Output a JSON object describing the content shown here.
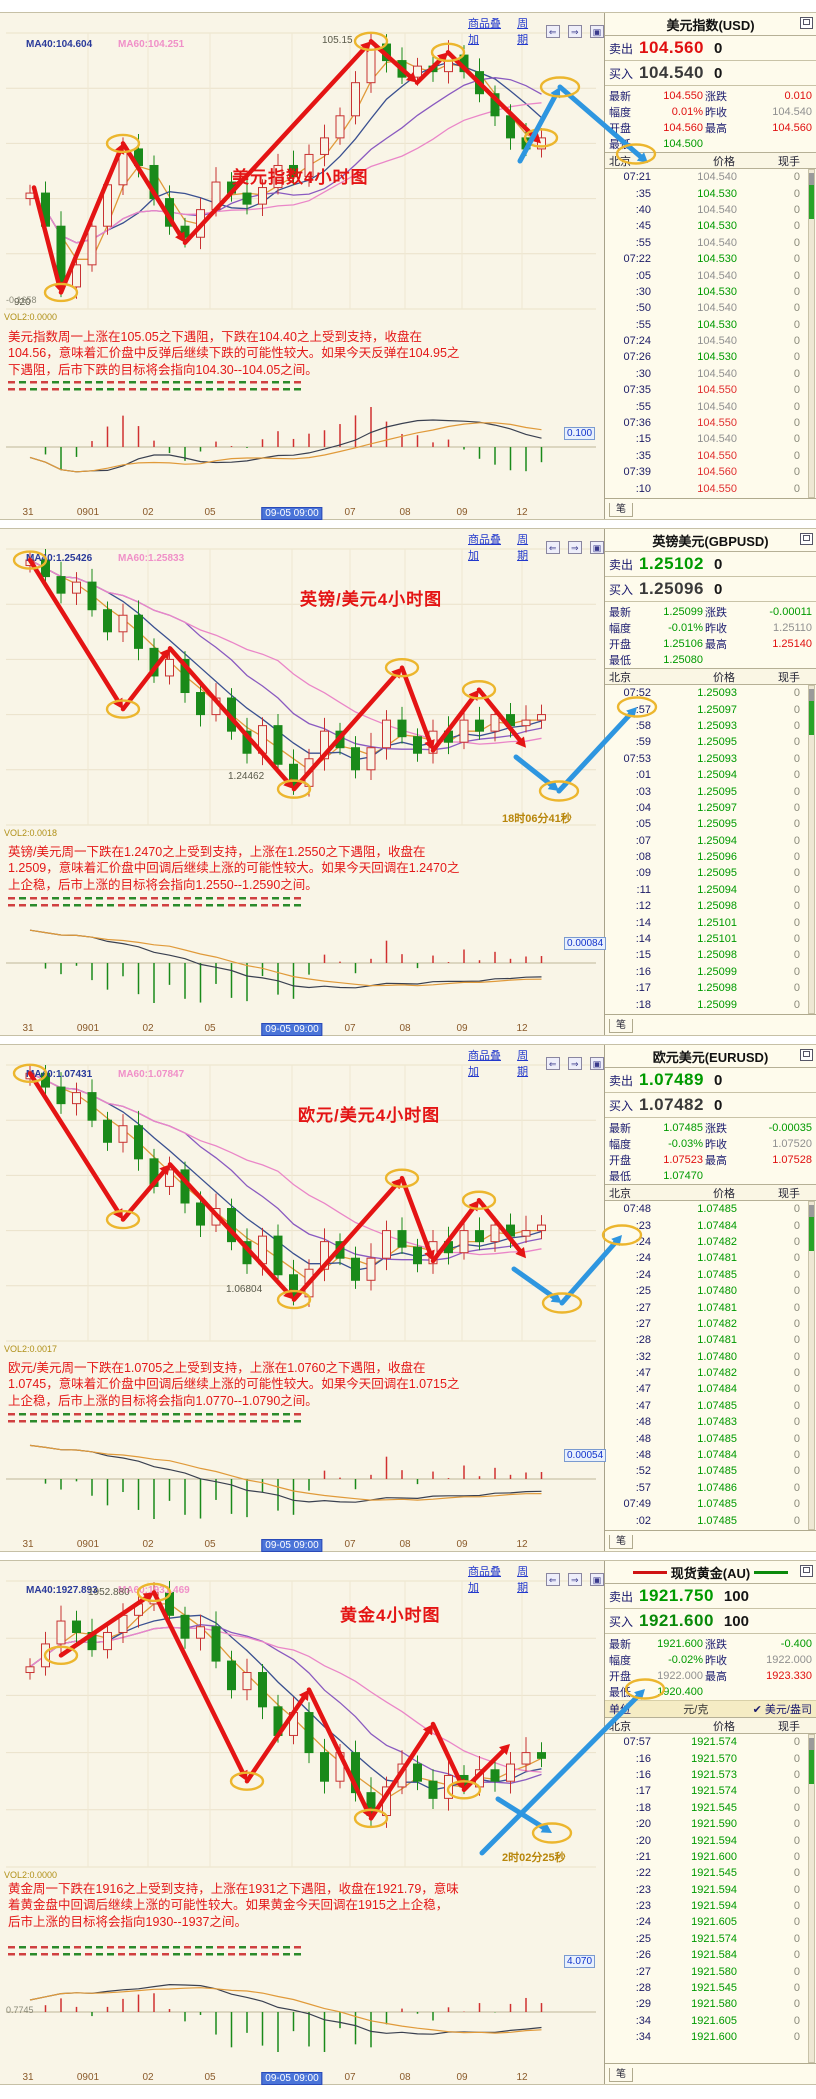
{
  "panels": [
    {
      "toolbar": {
        "overlay": "商品叠加",
        "period": "周期"
      },
      "chart": {
        "ma40": "MA40:104.604",
        "ma60": "MA60:104.251",
        "watermark": "美元指数4小时图",
        "peak_label": "105.15",
        "low_label": "920",
        "annotation": "",
        "vol_label": "VOL2:0.0000",
        "ind_label": "-0.1658",
        "macd_box": "0.100",
        "x_ticks": [
          "31",
          "0901",
          "02",
          "05",
          "09-05 09:00",
          "07",
          "08",
          "09",
          "12"
        ],
        "x_highlight_index": 4,
        "commentary": "美元指数周一上涨在105.05之下遇阻，下跌在104.40之上受到支持，收盘在104.56，意味着汇价盘中反弹后继续下跌的可能性较大。如果今天反弹在104.95之下遇阻，后市下跌的目标将会指向104.30--104.05之间。"
      },
      "quote": {
        "title": "美元指数(USD)",
        "sell_label": "卖出",
        "sell_price": "104.560",
        "sell_qty": "0",
        "sell_color": "red",
        "buy_label": "买入",
        "buy_price": "104.540",
        "buy_qty": "0",
        "buy_color": "dark",
        "stats": [
          {
            "label": "最新",
            "value": "104.550",
            "color": "red",
            "label2": "涨跌",
            "value2": "0.010",
            "color2": "red"
          },
          {
            "label": "幅度",
            "value": "0.01%",
            "color": "red",
            "label2": "昨收",
            "value2": "104.540",
            "color2": "gray"
          },
          {
            "label": "开盘",
            "value": "104.560",
            "color": "red",
            "label2": "最高",
            "value2": "104.560",
            "color2": "red"
          },
          {
            "label": "最低",
            "value": "104.500",
            "color": "green",
            "label2": "",
            "value2": "",
            "color2": "gray"
          }
        ],
        "unit_row": null,
        "columns": [
          "北京",
          "价格",
          "现手"
        ],
        "ticks": [
          {
            "t": "07:21",
            "p": "104.540",
            "v": "0",
            "c": "n"
          },
          {
            "t": ":35",
            "p": "104.530",
            "v": "0",
            "c": "g"
          },
          {
            "t": ":40",
            "p": "104.540",
            "v": "0",
            "c": "n"
          },
          {
            "t": ":45",
            "p": "104.530",
            "v": "0",
            "c": "g"
          },
          {
            "t": ":55",
            "p": "104.540",
            "v": "0",
            "c": "n"
          },
          {
            "t": "07:22",
            "p": "104.530",
            "v": "0",
            "c": "g"
          },
          {
            "t": ":05",
            "p": "104.540",
            "v": "0",
            "c": "n"
          },
          {
            "t": ":30",
            "p": "104.530",
            "v": "0",
            "c": "g"
          },
          {
            "t": ":50",
            "p": "104.540",
            "v": "0",
            "c": "n"
          },
          {
            "t": ":55",
            "p": "104.530",
            "v": "0",
            "c": "g"
          },
          {
            "t": "07:24",
            "p": "104.540",
            "v": "0",
            "c": "n"
          },
          {
            "t": "07:26",
            "p": "104.530",
            "v": "0",
            "c": "g"
          },
          {
            "t": ":30",
            "p": "104.540",
            "v": "0",
            "c": "n"
          },
          {
            "t": "07:35",
            "p": "104.550",
            "v": "0",
            "c": "r"
          },
          {
            "t": ":55",
            "p": "104.540",
            "v": "0",
            "c": "n"
          },
          {
            "t": "07:36",
            "p": "104.550",
            "v": "0",
            "c": "r"
          },
          {
            "t": ":15",
            "p": "104.540",
            "v": "0",
            "c": "n"
          },
          {
            "t": ":35",
            "p": "104.550",
            "v": "0",
            "c": "r"
          },
          {
            "t": "07:39",
            "p": "104.560",
            "v": "0",
            "c": "r"
          },
          {
            "t": ":10",
            "p": "104.550",
            "v": "0",
            "c": "r"
          }
        ],
        "tab": "笔"
      }
    },
    {
      "toolbar": {
        "overlay": "商品叠加",
        "period": "周期"
      },
      "chart": {
        "ma40": "MA40:1.25426",
        "ma60": "MA60:1.25833",
        "watermark": "英镑/美元4小时图",
        "peak_label": "",
        "low_label": "1.24462",
        "annotation": "18时06分41秒",
        "vol_label": "VOL2:0.0018",
        "ind_label": "",
        "macd_box": "0.00084",
        "x_ticks": [
          "31",
          "0901",
          "02",
          "05",
          "09-05 09:00",
          "07",
          "08",
          "09",
          "12"
        ],
        "x_highlight_index": 4,
        "commentary": "英镑/美元周一下跌在1.2470之上受到支持，上涨在1.2550之下遇阻，收盘在1.2509，意味着汇价盘中回调后继续上涨的可能性较大。如果今天回调在1.2470之上企稳，后市上涨的目标将会指向1.2550--1.2590之间。"
      },
      "quote": {
        "title": "英镑美元(GBPUSD)",
        "sell_label": "卖出",
        "sell_price": "1.25102",
        "sell_qty": "0",
        "sell_color": "green",
        "buy_label": "买入",
        "buy_price": "1.25096",
        "buy_qty": "0",
        "buy_color": "dark",
        "stats": [
          {
            "label": "最新",
            "value": "1.25099",
            "color": "green",
            "label2": "涨跌",
            "value2": "-0.00011",
            "color2": "green"
          },
          {
            "label": "幅度",
            "value": "-0.01%",
            "color": "green",
            "label2": "昨收",
            "value2": "1.25110",
            "color2": "gray"
          },
          {
            "label": "开盘",
            "value": "1.25106",
            "color": "green",
            "label2": "最高",
            "value2": "1.25140",
            "color2": "red"
          },
          {
            "label": "最低",
            "value": "1.25080",
            "color": "green",
            "label2": "",
            "value2": "",
            "color2": "gray"
          }
        ],
        "unit_row": null,
        "columns": [
          "北京",
          "价格",
          "现手"
        ],
        "ticks": [
          {
            "t": "07:52",
            "p": "1.25093",
            "v": "0",
            "c": "g"
          },
          {
            "t": ":57",
            "p": "1.25097",
            "v": "0",
            "c": "g"
          },
          {
            "t": ":58",
            "p": "1.25093",
            "v": "0",
            "c": "g"
          },
          {
            "t": ":59",
            "p": "1.25095",
            "v": "0",
            "c": "g"
          },
          {
            "t": "07:53",
            "p": "1.25093",
            "v": "0",
            "c": "g"
          },
          {
            "t": ":01",
            "p": "1.25094",
            "v": "0",
            "c": "g"
          },
          {
            "t": ":03",
            "p": "1.25095",
            "v": "0",
            "c": "g"
          },
          {
            "t": ":04",
            "p": "1.25097",
            "v": "0",
            "c": "g"
          },
          {
            "t": ":05",
            "p": "1.25095",
            "v": "0",
            "c": "g"
          },
          {
            "t": ":07",
            "p": "1.25094",
            "v": "0",
            "c": "g"
          },
          {
            "t": ":08",
            "p": "1.25096",
            "v": "0",
            "c": "g"
          },
          {
            "t": ":09",
            "p": "1.25095",
            "v": "0",
            "c": "g"
          },
          {
            "t": ":11",
            "p": "1.25094",
            "v": "0",
            "c": "g"
          },
          {
            "t": ":12",
            "p": "1.25098",
            "v": "0",
            "c": "g"
          },
          {
            "t": ":14",
            "p": "1.25101",
            "v": "0",
            "c": "g"
          },
          {
            "t": ":14",
            "p": "1.25101",
            "v": "0",
            "c": "g"
          },
          {
            "t": ":15",
            "p": "1.25098",
            "v": "0",
            "c": "g"
          },
          {
            "t": ":16",
            "p": "1.25099",
            "v": "0",
            "c": "g"
          },
          {
            "t": ":17",
            "p": "1.25098",
            "v": "0",
            "c": "g"
          },
          {
            "t": ":18",
            "p": "1.25099",
            "v": "0",
            "c": "g"
          }
        ],
        "tab": "笔"
      }
    },
    {
      "toolbar": {
        "overlay": "商品叠加",
        "period": "周期"
      },
      "chart": {
        "ma40": "MA40:1.07431",
        "ma60": "MA60:1.07847",
        "watermark": "欧元/美元4小时图",
        "peak_label": "",
        "low_label": "1.06804",
        "annotation": "",
        "vol_label": "VOL2:0.0017",
        "ind_label": "",
        "macd_box": "0.00054",
        "x_ticks": [
          "31",
          "0901",
          "02",
          "05",
          "09-05 09:00",
          "07",
          "08",
          "09",
          "12"
        ],
        "x_highlight_index": 4,
        "commentary": "欧元/美元周一下跌在1.0705之上受到支持，上涨在1.0760之下遇阻，收盘在1.0745，意味着汇价盘中回调后继续上涨的可能性较大。如果今天回调在1.0715之上企稳，后市上涨的目标将会指向1.0770--1.0790之间。"
      },
      "quote": {
        "title": "欧元美元(EURUSD)",
        "sell_label": "卖出",
        "sell_price": "1.07489",
        "sell_qty": "0",
        "sell_color": "green",
        "buy_label": "买入",
        "buy_price": "1.07482",
        "buy_qty": "0",
        "buy_color": "dark",
        "stats": [
          {
            "label": "最新",
            "value": "1.07485",
            "color": "green",
            "label2": "涨跌",
            "value2": "-0.00035",
            "color2": "green"
          },
          {
            "label": "幅度",
            "value": "-0.03%",
            "color": "green",
            "label2": "昨收",
            "value2": "1.07520",
            "color2": "gray"
          },
          {
            "label": "开盘",
            "value": "1.07523",
            "color": "red",
            "label2": "最高",
            "value2": "1.07528",
            "color2": "red"
          },
          {
            "label": "最低",
            "value": "1.07470",
            "color": "green",
            "label2": "",
            "value2": "",
            "color2": "gray"
          }
        ],
        "unit_row": null,
        "columns": [
          "北京",
          "价格",
          "现手"
        ],
        "ticks": [
          {
            "t": "07:48",
            "p": "1.07485",
            "v": "0",
            "c": "g"
          },
          {
            "t": ":23",
            "p": "1.07484",
            "v": "0",
            "c": "g"
          },
          {
            "t": ":24",
            "p": "1.07482",
            "v": "0",
            "c": "g"
          },
          {
            "t": ":24",
            "p": "1.07481",
            "v": "0",
            "c": "g"
          },
          {
            "t": ":24",
            "p": "1.07485",
            "v": "0",
            "c": "g"
          },
          {
            "t": ":25",
            "p": "1.07480",
            "v": "0",
            "c": "g"
          },
          {
            "t": ":27",
            "p": "1.07481",
            "v": "0",
            "c": "g"
          },
          {
            "t": ":27",
            "p": "1.07482",
            "v": "0",
            "c": "g"
          },
          {
            "t": ":28",
            "p": "1.07481",
            "v": "0",
            "c": "g"
          },
          {
            "t": ":32",
            "p": "1.07480",
            "v": "0",
            "c": "g"
          },
          {
            "t": ":47",
            "p": "1.07482",
            "v": "0",
            "c": "g"
          },
          {
            "t": ":47",
            "p": "1.07484",
            "v": "0",
            "c": "g"
          },
          {
            "t": ":47",
            "p": "1.07485",
            "v": "0",
            "c": "g"
          },
          {
            "t": ":48",
            "p": "1.07483",
            "v": "0",
            "c": "g"
          },
          {
            "t": ":48",
            "p": "1.07485",
            "v": "0",
            "c": "g"
          },
          {
            "t": ":48",
            "p": "1.07484",
            "v": "0",
            "c": "g"
          },
          {
            "t": ":52",
            "p": "1.07485",
            "v": "0",
            "c": "g"
          },
          {
            "t": ":57",
            "p": "1.07486",
            "v": "0",
            "c": "g"
          },
          {
            "t": "07:49",
            "p": "1.07485",
            "v": "0",
            "c": "g"
          },
          {
            "t": ":02",
            "p": "1.07485",
            "v": "0",
            "c": "g"
          }
        ],
        "tab": "笔"
      }
    },
    {
      "toolbar": {
        "overlay": "商品叠加",
        "period": "周期"
      },
      "chart": {
        "ma40": "MA40:1927.893",
        "ma60": "MA60:1931.469",
        "watermark": "黄金4小时图",
        "peak_label": "1952.880",
        "low_label": "",
        "annotation": "2时02分25秒",
        "vol_label": "VOL2:0.0000",
        "ind_label": "0.7745",
        "macd_box": "4.070",
        "x_ticks": [
          "31",
          "0901",
          "02",
          "05",
          "09-05 09:00",
          "07",
          "08",
          "09",
          "12"
        ],
        "x_highlight_index": 4,
        "commentary": "黄金周一下跌在1916之上受到支持，上涨在1931之下遇阻，收盘在1921.79，意味着黄金盘中回调后继续上涨的可能性较大。如果黄金今天回调在1915之上企稳，后市上涨的目标将会指向1930--1937之间。"
      },
      "quote": {
        "title": "现货黄金(AU)",
        "sell_label": "卖出",
        "sell_price": "1921.750",
        "sell_qty": "100",
        "sell_color": "green",
        "buy_label": "买入",
        "buy_price": "1921.600",
        "buy_qty": "100",
        "buy_color": "green2",
        "stats": [
          {
            "label": "最新",
            "value": "1921.600",
            "color": "green",
            "label2": "涨跌",
            "value2": "-0.400",
            "color2": "green"
          },
          {
            "label": "幅度",
            "value": "-0.02%",
            "color": "green",
            "label2": "昨收",
            "value2": "1922.000",
            "color2": "gray"
          },
          {
            "label": "开盘",
            "value": "1922.000",
            "color": "gray",
            "label2": "最高",
            "value2": "1923.330",
            "color2": "red"
          },
          {
            "label": "最低",
            "value": "1920.400",
            "color": "green",
            "label2": "",
            "value2": "",
            "color2": "gray"
          }
        ],
        "unit_row": {
          "label": "单位",
          "option_gram": "元/克",
          "check": "✔",
          "option_ounce": "美元/盎司"
        },
        "columns": [
          "北京",
          "价格",
          "现手"
        ],
        "ticks": [
          {
            "t": "07:57",
            "p": "1921.574",
            "v": "0",
            "c": "g"
          },
          {
            "t": ":16",
            "p": "1921.570",
            "v": "0",
            "c": "g"
          },
          {
            "t": ":16",
            "p": "1921.573",
            "v": "0",
            "c": "g"
          },
          {
            "t": ":17",
            "p": "1921.574",
            "v": "0",
            "c": "g"
          },
          {
            "t": ":18",
            "p": "1921.545",
            "v": "0",
            "c": "g"
          },
          {
            "t": ":20",
            "p": "1921.590",
            "v": "0",
            "c": "g"
          },
          {
            "t": ":20",
            "p": "1921.594",
            "v": "0",
            "c": "g"
          },
          {
            "t": ":21",
            "p": "1921.600",
            "v": "0",
            "c": "g"
          },
          {
            "t": ":22",
            "p": "1921.545",
            "v": "0",
            "c": "g"
          },
          {
            "t": ":23",
            "p": "1921.594",
            "v": "0",
            "c": "g"
          },
          {
            "t": ":23",
            "p": "1921.594",
            "v": "0",
            "c": "g"
          },
          {
            "t": ":24",
            "p": "1921.605",
            "v": "0",
            "c": "g"
          },
          {
            "t": ":25",
            "p": "1921.574",
            "v": "0",
            "c": "g"
          },
          {
            "t": ":26",
            "p": "1921.584",
            "v": "0",
            "c": "g"
          },
          {
            "t": ":27",
            "p": "1921.580",
            "v": "0",
            "c": "g"
          },
          {
            "t": ":28",
            "p": "1921.545",
            "v": "0",
            "c": "g"
          },
          {
            "t": ":29",
            "p": "1921.580",
            "v": "0",
            "c": "g"
          },
          {
            "t": ":34",
            "p": "1921.605",
            "v": "0",
            "c": "g"
          },
          {
            "t": ":34",
            "p": "1921.600",
            "v": "0",
            "c": "g"
          }
        ],
        "tab": "笔"
      }
    }
  ]
}
